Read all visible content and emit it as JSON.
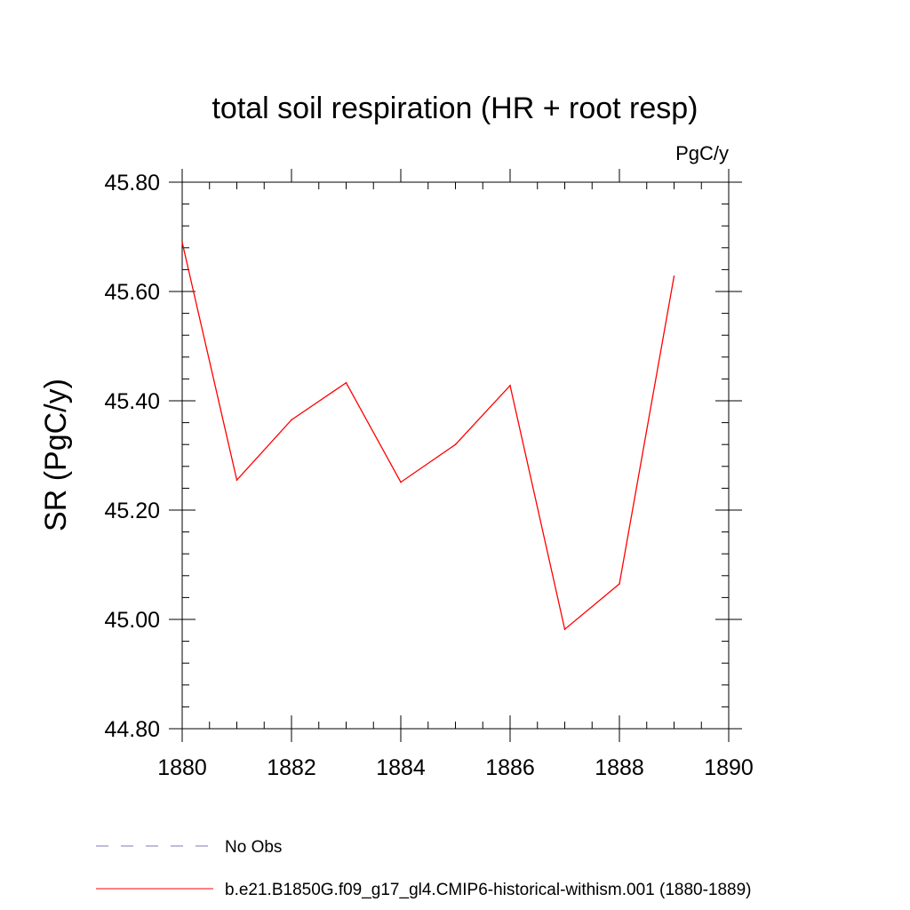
{
  "chart_data": {
    "type": "line",
    "title": "total soil respiration (HR + root resp)",
    "units_label": "PgC/y",
    "ylabel": "SR  (PgC/y)",
    "xlabel": "",
    "xlim": [
      1880,
      1890
    ],
    "ylim": [
      44.8,
      45.8
    ],
    "x_ticks": [
      1880,
      1882,
      1884,
      1886,
      1888,
      1890
    ],
    "x_tick_labels": [
      "1880",
      "1882",
      "1884",
      "1886",
      "1888",
      "1890"
    ],
    "y_ticks": [
      44.8,
      45.0,
      45.2,
      45.4,
      45.6,
      45.8
    ],
    "y_tick_labels": [
      "44.80",
      "45.00",
      "45.20",
      "45.40",
      "45.60",
      "45.80"
    ],
    "grid": false,
    "legend_placement": "bottom",
    "series": [
      {
        "name": "No Obs",
        "color": "#7b7bb5",
        "dash": "dashed",
        "x": [],
        "y": []
      },
      {
        "name": "b.e21.B1850G.f09_g17_gl4.CMIP6-historical-withism.001 (1880-1889)",
        "color": "#ff0000",
        "dash": "solid",
        "x": [
          1880,
          1881,
          1882,
          1883,
          1884,
          1885,
          1886,
          1887,
          1888,
          1889
        ],
        "y": [
          45.69,
          45.255,
          45.365,
          45.433,
          45.251,
          45.32,
          45.428,
          44.982,
          45.065,
          45.628
        ]
      }
    ]
  }
}
